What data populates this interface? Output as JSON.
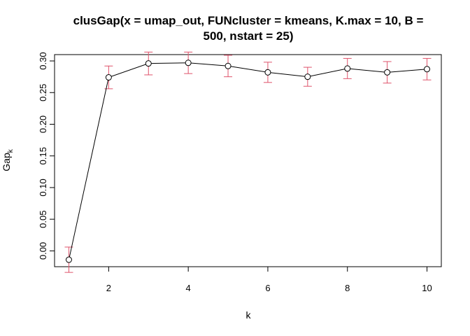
{
  "chart_data": {
    "type": "line",
    "title_line1": "clusGap(x = umap_out, FUNcluster = kmeans, K.max = 10, B =",
    "title_line2": "500, nstart = 25)",
    "xlabel": "k",
    "ylabel_main": "Gap",
    "ylabel_sub": "k",
    "xlim": [
      0.64,
      10.36
    ],
    "ylim": [
      -0.025,
      0.31
    ],
    "x_ticks": [
      2,
      4,
      6,
      8,
      10
    ],
    "y_ticks": [
      0.0,
      0.05,
      0.1,
      0.15,
      0.2,
      0.25,
      0.3
    ],
    "y_tick_labels": [
      "0.00",
      "0.05",
      "0.10",
      "0.15",
      "0.20",
      "0.25",
      "0.30"
    ],
    "x_tick_labels": [
      "2",
      "4",
      "6",
      "8",
      "10"
    ],
    "x": [
      1,
      2,
      3,
      4,
      5,
      6,
      7,
      8,
      9,
      10
    ],
    "gap": [
      -0.014,
      0.274,
      0.296,
      0.297,
      0.292,
      0.282,
      0.275,
      0.288,
      0.282,
      0.287
    ],
    "se": [
      0.02,
      0.018,
      0.018,
      0.017,
      0.017,
      0.016,
      0.015,
      0.016,
      0.017,
      0.017
    ],
    "grid": false,
    "colors": {
      "line": "#000000",
      "points": "#000000",
      "error_bars": "#DF536B"
    }
  }
}
